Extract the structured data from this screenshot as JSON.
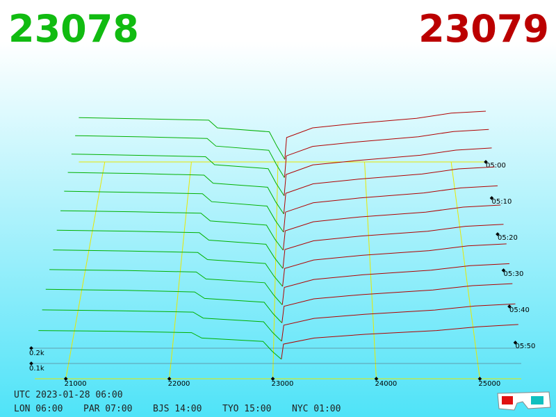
{
  "header": {
    "bid": "23078",
    "ask": "23079",
    "bid_color": "#11bb11",
    "ask_color": "#bb0000"
  },
  "chart_data": {
    "type": "depth3d",
    "xlim": [
      20700,
      25400
    ],
    "xticks": [
      21000,
      22000,
      23000,
      24000,
      25000
    ],
    "zticks": [
      {
        "value": 100,
        "label": "0.1k"
      },
      {
        "value": 200,
        "label": "0.2k"
      }
    ],
    "time_ticks": [
      "05:00",
      "05:10",
      "05:20",
      "05:30",
      "05:40",
      "05:50"
    ],
    "grid_color": "#e8e800",
    "bids": {
      "color": "#00b000",
      "prices": [
        20700,
        21500,
        22200,
        22300,
        22900,
        22990,
        23078
      ],
      "depths": [
        [
          345,
          335,
          325,
          265,
          235,
          120,
          20
        ],
        [
          340,
          330,
          318,
          260,
          228,
          115,
          18
        ],
        [
          332,
          322,
          312,
          252,
          222,
          110,
          18
        ],
        [
          325,
          316,
          305,
          245,
          215,
          105,
          16
        ],
        [
          315,
          306,
          296,
          238,
          206,
          100,
          16
        ],
        [
          300,
          292,
          282,
          226,
          196,
          95,
          15
        ],
        [
          285,
          278,
          268,
          215,
          186,
          90,
          14
        ],
        [
          270,
          262,
          252,
          202,
          175,
          85,
          14
        ],
        [
          255,
          248,
          238,
          190,
          164,
          80,
          12
        ],
        [
          240,
          233,
          222,
          178,
          152,
          74,
          12
        ],
        [
          220,
          214,
          205,
          165,
          140,
          68,
          10
        ],
        [
          200,
          195,
          186,
          150,
          128,
          62,
          10
        ]
      ]
    },
    "asks": {
      "color": "#b00000",
      "prices": [
        23079,
        23100,
        23400,
        23900,
        24600,
        25000,
        25400
      ],
      "depths": [
        [
          20,
          190,
          265,
          300,
          340,
          380,
          395
        ],
        [
          20,
          185,
          258,
          292,
          332,
          372,
          388
        ],
        [
          18,
          178,
          250,
          284,
          323,
          362,
          378
        ],
        [
          18,
          170,
          240,
          275,
          313,
          351,
          366
        ],
        [
          16,
          162,
          230,
          265,
          302,
          339,
          354
        ],
        [
          16,
          155,
          220,
          255,
          290,
          326,
          341
        ],
        [
          14,
          148,
          210,
          244,
          278,
          313,
          327
        ],
        [
          14,
          140,
          199,
          232,
          265,
          298,
          312
        ],
        [
          12,
          132,
          187,
          219,
          251,
          282,
          296
        ],
        [
          12,
          125,
          175,
          205,
          236,
          265,
          279
        ],
        [
          10,
          117,
          163,
          190,
          219,
          246,
          260
        ],
        [
          10,
          110,
          150,
          175,
          200,
          225,
          240
        ]
      ]
    }
  },
  "footer": {
    "utc": "UTC 2023-01-28 06:00",
    "cities": [
      "LON 06:00",
      "PAR 07:00",
      "BJS 14:00",
      "TYO 15:00",
      "NYC 01:00"
    ]
  }
}
